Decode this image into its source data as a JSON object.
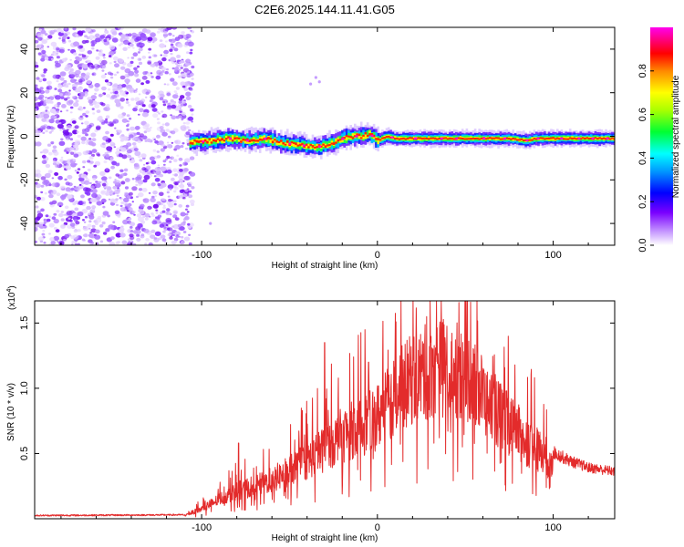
{
  "title": "C2E6.2025.144.11.41.G05",
  "chart_data": [
    {
      "type": "heatmap",
      "xlabel": "Height of straight line (km)",
      "ylabel": "Frequency (Hz)",
      "xlim": [
        -195,
        135
      ],
      "ylim": [
        -50,
        50
      ],
      "xticks": [
        -100,
        0,
        100
      ],
      "xtick_labels": [
        "-100",
        "0",
        "100"
      ],
      "yticks": [
        -40,
        -20,
        0,
        20,
        40
      ],
      "ytick_labels": [
        "-40",
        "-20",
        "0",
        "20",
        "40"
      ],
      "colorbar": {
        "label": "Normalized spectral amplitude",
        "range": [
          0,
          1
        ],
        "ticks": [
          0.0,
          0.2,
          0.4,
          0.6,
          0.8
        ],
        "tick_labels": [
          "0.0",
          "0.2",
          "0.4",
          "0.6",
          "0.8"
        ]
      },
      "noise_region_x": [
        -195,
        -107
      ],
      "ridge": {
        "x": [
          -107,
          -95,
          -85,
          -75,
          -65,
          -55,
          -45,
          -35,
          -25,
          -20,
          -15,
          -10,
          -5,
          0,
          5,
          10,
          20,
          30,
          45,
          60,
          75,
          85,
          90,
          100,
          110,
          125,
          135
        ],
        "freq": [
          -3,
          -2,
          -1,
          -2,
          -1,
          -3,
          -4,
          -5,
          -3,
          -1,
          0,
          0,
          1,
          -2,
          0,
          -1,
          -1,
          -1,
          -1,
          -1,
          -1,
          -2,
          -1,
          -1,
          -1,
          -1,
          -1
        ]
      }
    },
    {
      "type": "line",
      "xlabel": "Height of straight line (km)",
      "ylabel": "SNR (10 * v/v)",
      "scale_label_base": "(x10",
      "scale_label_exp": "4",
      "scale_label_close": ")",
      "xlim": [
        -195,
        135
      ],
      "ylim": [
        0,
        16700
      ],
      "xticks": [
        -100,
        0,
        100
      ],
      "xtick_labels": [
        "-100",
        "0",
        "100"
      ],
      "yticks": [
        5000,
        10000,
        15000
      ],
      "ytick_labels": [
        "0.5",
        "1.0",
        "1.5"
      ],
      "series": [
        {
          "color": "#e32b2b",
          "envelope_x": [
            -195,
            -140,
            -110,
            -100,
            -90,
            -80,
            -70,
            -60,
            -50,
            -40,
            -30,
            -20,
            -10,
            0,
            10,
            20,
            30,
            40,
            50,
            60,
            70,
            80,
            90,
            100,
            110,
            120,
            135
          ],
          "envelope_y": [
            250,
            280,
            300,
            900,
            1800,
            2600,
            3000,
            3600,
            4500,
            5400,
            6500,
            7800,
            8500,
            9500,
            11500,
            13000,
            13800,
            14200,
            13500,
            11500,
            9500,
            8000,
            6500,
            5200,
            4500,
            4000,
            3700
          ],
          "peaks": [
            {
              "x": -79,
              "y": 5800
            },
            {
              "x": -30,
              "y": 13500
            },
            {
              "x": -5,
              "y": 12000
            },
            {
              "x": 28,
              "y": 15500
            },
            {
              "x": 53,
              "y": 16600
            },
            {
              "x": 68,
              "y": 10500
            }
          ]
        }
      ]
    }
  ]
}
